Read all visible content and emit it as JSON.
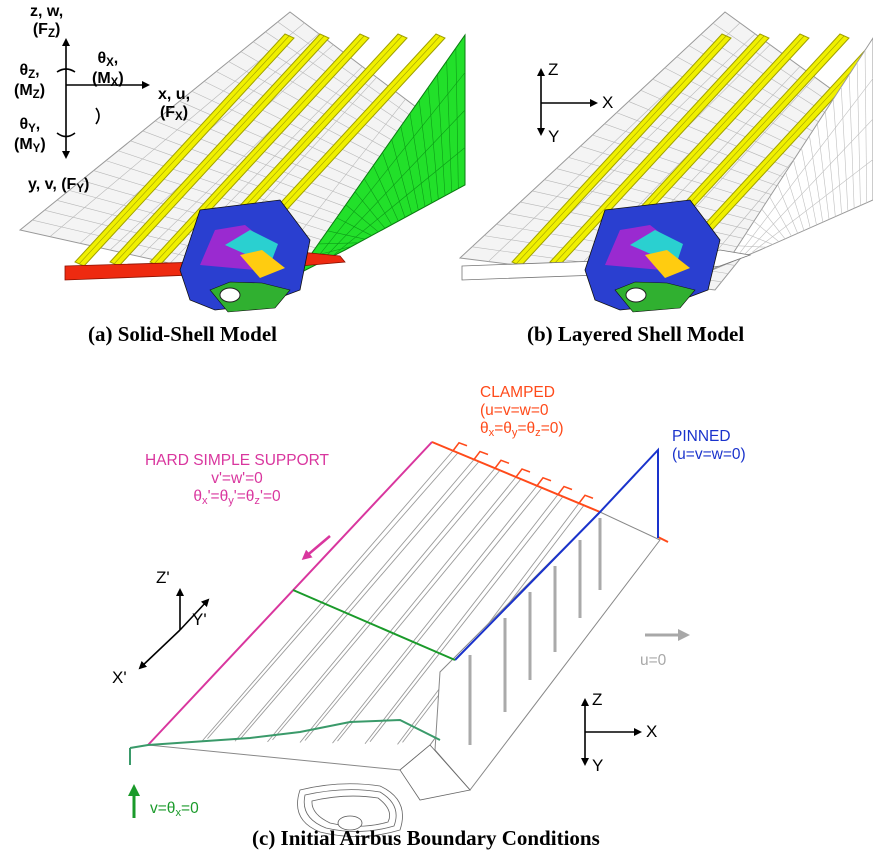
{
  "captions": {
    "a": "(a) Solid-Shell Model",
    "b": "(b) Layered Shell Model",
    "c": "(c) Initial Airbus Boundary Conditions"
  },
  "axes_a": {
    "z_line": "z, w,",
    "z_force": "F",
    "z_force_sub": "Z",
    "theta_z": "θ",
    "theta_z_sub": "Z",
    "moment_z": "M",
    "moment_z_sub": "Z",
    "theta_x": "θ",
    "theta_x_sub": "X",
    "moment_x": "M",
    "moment_x_sub": "X",
    "x_line": "x, u,",
    "x_force": "F",
    "x_force_sub": "X",
    "theta_y": "θ",
    "theta_y_sub": "Y",
    "moment_y": "M",
    "moment_y_sub": "Y",
    "y_line": "y, v, (F",
    "y_force_sub": "Y",
    "close": ")"
  },
  "axes_b": {
    "z": "Z",
    "x": "X",
    "y": "Y"
  },
  "axes_c_global": {
    "z": "Z",
    "x": "X",
    "y": "Y"
  },
  "axes_c_local": {
    "z": "Z'",
    "y": "Y'",
    "x": "X'"
  },
  "bc": {
    "clamped_title": "CLAMPED",
    "clamped_line1": "(u=v=w=0",
    "clamped_line2_a": "θ",
    "clamped_line2_sx": "x",
    "clamped_line2_b": "=θ",
    "clamped_line2_sy": "y",
    "clamped_line2_c": "=θ",
    "clamped_line2_sz": "z",
    "clamped_line2_d": "=0)",
    "pinned_title": "PINNED",
    "pinned_line1": "(u=v=w=0)",
    "hss_title": "HARD SIMPLE SUPPORT",
    "hss_line1": "v'=w'=0",
    "hss_line2_a": "θ",
    "hss_line2_sx": "x",
    "hss_line2_b": "'=θ",
    "hss_line2_sy": "y",
    "hss_line2_c": "'=θ",
    "hss_line2_sz": "z",
    "hss_line2_d": "'=0",
    "u0": "u=0",
    "v_a": "v=θ",
    "v_sx": "x",
    "v_b": "=0"
  },
  "colors": {
    "clamped": "#ff4a1a",
    "pinned": "#1a33cc",
    "hss": "#d9369e",
    "symmetry": "#1a9a2a",
    "edge": "#3a9a6a",
    "u0": "#a8a8a8",
    "stringer": "#f0f000",
    "stringer_edge": "#a0a000",
    "shell_green": "#22e02a",
    "red_flange": "#ee2a10"
  }
}
